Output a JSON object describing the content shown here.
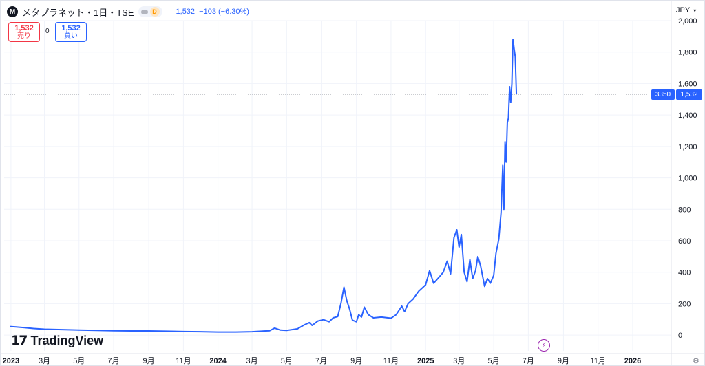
{
  "header": {
    "symbol_logo": "M",
    "title": "メタプラネット・1日・TSE",
    "interval_badge": "D",
    "price": "1,532",
    "change": "−103 (−6.30%)"
  },
  "trade": {
    "sell_price": "1,532",
    "sell_label": "売り",
    "spread": "0",
    "buy_price": "1,532",
    "buy_label": "買い"
  },
  "currency": {
    "value": "JPY",
    "icon": "chevron-down-icon"
  },
  "price_labels": {
    "countdown": "3350",
    "last": "1,532"
  },
  "branding": {
    "logo_mark": "17",
    "text": "TradingView"
  },
  "icons": {
    "lightning": "lightning-icon",
    "settings": "settings-icon"
  },
  "colors": {
    "line": "#2962ff",
    "sell": "#f23645",
    "buy": "#2962ff",
    "badge": "#ff9800",
    "accent_event": "#9c27b0"
  },
  "chart_data": {
    "type": "line",
    "series": [
      {
        "values": [
          [
            "2022-12-30",
            55
          ],
          [
            "2023-01-10",
            52
          ],
          [
            "2023-01-25",
            48
          ],
          [
            "2023-02-10",
            42
          ],
          [
            "2023-03-01",
            38
          ],
          [
            "2023-04-01",
            35
          ],
          [
            "2023-05-01",
            32
          ],
          [
            "2023-06-01",
            30
          ],
          [
            "2023-07-01",
            28
          ],
          [
            "2023-08-01",
            27
          ],
          [
            "2023-09-01",
            27
          ],
          [
            "2023-10-01",
            25
          ],
          [
            "2023-11-01",
            23
          ],
          [
            "2023-12-01",
            22
          ],
          [
            "2024-01-01",
            20
          ],
          [
            "2024-02-01",
            20
          ],
          [
            "2024-03-01",
            22
          ],
          [
            "2024-04-01",
            28
          ],
          [
            "2024-04-10",
            45
          ],
          [
            "2024-04-20",
            32
          ],
          [
            "2024-05-01",
            30
          ],
          [
            "2024-05-20",
            40
          ],
          [
            "2024-06-01",
            65
          ],
          [
            "2024-06-10",
            80
          ],
          [
            "2024-06-15",
            62
          ],
          [
            "2024-06-25",
            90
          ],
          [
            "2024-07-05",
            98
          ],
          [
            "2024-07-15",
            85
          ],
          [
            "2024-07-22",
            110
          ],
          [
            "2024-07-30",
            118
          ],
          [
            "2024-08-05",
            205
          ],
          [
            "2024-08-10",
            305
          ],
          [
            "2024-08-15",
            220
          ],
          [
            "2024-08-20",
            165
          ],
          [
            "2024-08-25",
            95
          ],
          [
            "2024-09-01",
            85
          ],
          [
            "2024-09-05",
            130
          ],
          [
            "2024-09-10",
            115
          ],
          [
            "2024-09-15",
            178
          ],
          [
            "2024-09-22",
            130
          ],
          [
            "2024-10-01",
            110
          ],
          [
            "2024-10-15",
            115
          ],
          [
            "2024-11-01",
            108
          ],
          [
            "2024-11-10",
            130
          ],
          [
            "2024-11-20",
            185
          ],
          [
            "2024-11-25",
            150
          ],
          [
            "2024-12-01",
            200
          ],
          [
            "2024-12-10",
            230
          ],
          [
            "2024-12-20",
            280
          ],
          [
            "2025-01-01",
            320
          ],
          [
            "2025-01-08",
            410
          ],
          [
            "2025-01-15",
            330
          ],
          [
            "2025-01-25",
            370
          ],
          [
            "2025-02-01",
            400
          ],
          [
            "2025-02-08",
            470
          ],
          [
            "2025-02-14",
            390
          ],
          [
            "2025-02-20",
            620
          ],
          [
            "2025-02-25",
            670
          ],
          [
            "2025-03-01",
            560
          ],
          [
            "2025-03-05",
            640
          ],
          [
            "2025-03-10",
            400
          ],
          [
            "2025-03-15",
            340
          ],
          [
            "2025-03-20",
            480
          ],
          [
            "2025-03-25",
            360
          ],
          [
            "2025-03-30",
            410
          ],
          [
            "2025-04-03",
            500
          ],
          [
            "2025-04-08",
            440
          ],
          [
            "2025-04-15",
            310
          ],
          [
            "2025-04-20",
            360
          ],
          [
            "2025-04-25",
            330
          ],
          [
            "2025-05-01",
            380
          ],
          [
            "2025-05-05",
            520
          ],
          [
            "2025-05-10",
            610
          ],
          [
            "2025-05-14",
            780
          ],
          [
            "2025-05-17",
            1080
          ],
          [
            "2025-05-19",
            800
          ],
          [
            "2025-05-21",
            1230
          ],
          [
            "2025-05-23",
            1100
          ],
          [
            "2025-05-25",
            1350
          ],
          [
            "2025-05-27",
            1380
          ],
          [
            "2025-05-29",
            1580
          ],
          [
            "2025-05-31",
            1480
          ],
          [
            "2025-06-02",
            1600
          ],
          [
            "2025-06-04",
            1880
          ],
          [
            "2025-06-06",
            1820
          ],
          [
            "2025-06-08",
            1770
          ],
          [
            "2025-06-10",
            1532
          ]
        ]
      }
    ],
    "xaxis": {
      "type": "time",
      "range": [
        "2022-12-20",
        "2026-03-10"
      ],
      "ticks": [
        [
          "2023-01-01",
          "2023"
        ],
        [
          "2023-03-01",
          "3月"
        ],
        [
          "2023-05-01",
          "5月"
        ],
        [
          "2023-07-01",
          "7月"
        ],
        [
          "2023-09-01",
          "9月"
        ],
        [
          "2023-11-01",
          "11月"
        ],
        [
          "2024-01-01",
          "2024"
        ],
        [
          "2024-03-01",
          "3月"
        ],
        [
          "2024-05-01",
          "5月"
        ],
        [
          "2024-07-01",
          "7月"
        ],
        [
          "2024-09-01",
          "9月"
        ],
        [
          "2024-11-01",
          "11月"
        ],
        [
          "2025-01-01",
          "2025"
        ],
        [
          "2025-03-01",
          "3月"
        ],
        [
          "2025-05-01",
          "5月"
        ],
        [
          "2025-07-01",
          "7月"
        ],
        [
          "2025-09-01",
          "9月"
        ],
        [
          "2025-11-01",
          "11月"
        ],
        [
          "2026-01-01",
          "2026"
        ]
      ]
    },
    "yaxis": {
      "range": [
        -100,
        2000
      ],
      "ticks": [
        0,
        200,
        400,
        600,
        800,
        1000,
        1200,
        1400,
        1600,
        1800,
        2000
      ],
      "tick_labels": [
        "0",
        "200",
        "400",
        "600",
        "800",
        "1,000",
        "1,200",
        "1,400",
        "1,600",
        "1,800",
        "2,000"
      ]
    },
    "last_value": 1532,
    "grid": true,
    "crosshair_price_line": true
  }
}
